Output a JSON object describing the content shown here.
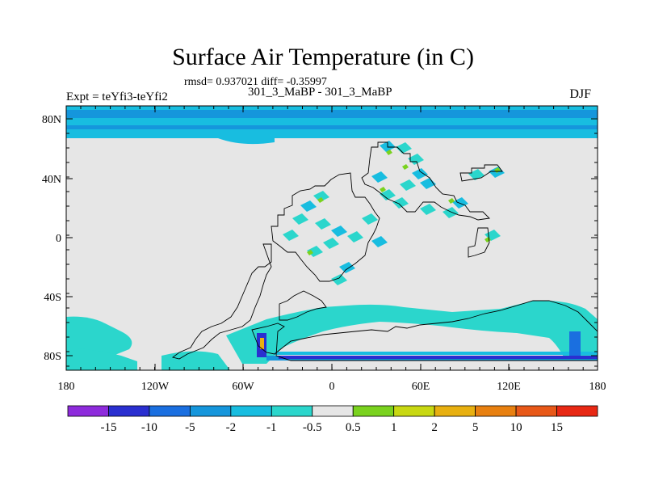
{
  "title": "Surface Air Temperature (in C)",
  "subtitle": "rmsd= 0.937021 diff= -0.35997",
  "left_label": "Expt = teYfi3-teYfi2",
  "center_label": "301_3_MaBP - 301_3_MaBP",
  "right_label": "DJF",
  "lat_ticks": [
    "80N",
    "40N",
    "0",
    "40S",
    "80S"
  ],
  "lon_ticks": [
    "180",
    "120W",
    "60W",
    "0",
    "60E",
    "120E",
    "180"
  ],
  "colorbar": {
    "labels": [
      "-15",
      "-10",
      "-5",
      "-2",
      "-1",
      "-0.5",
      "0.5",
      "1",
      "2",
      "5",
      "10",
      "15"
    ],
    "colors": [
      "#8e2bdc",
      "#2a2fd0",
      "#1a6fe0",
      "#1596dc",
      "#18bde0",
      "#2bd6cc",
      "#e6e6e6",
      "#7ad21e",
      "#c8d812",
      "#e8b010",
      "#e88010",
      "#e85818",
      "#e82814"
    ]
  },
  "map_colors": {
    "neutral": "#e6e6e6",
    "polar_band": "#1596dc",
    "mid_cool": "#18bde0",
    "light_cool": "#2bd6cc",
    "deep_cool": "#2a2fd0",
    "cold": "#1a6fe0",
    "warm_small": "#7ad21e",
    "warm_mid": "#c8d812",
    "warm_hot": "#e8b010"
  }
}
